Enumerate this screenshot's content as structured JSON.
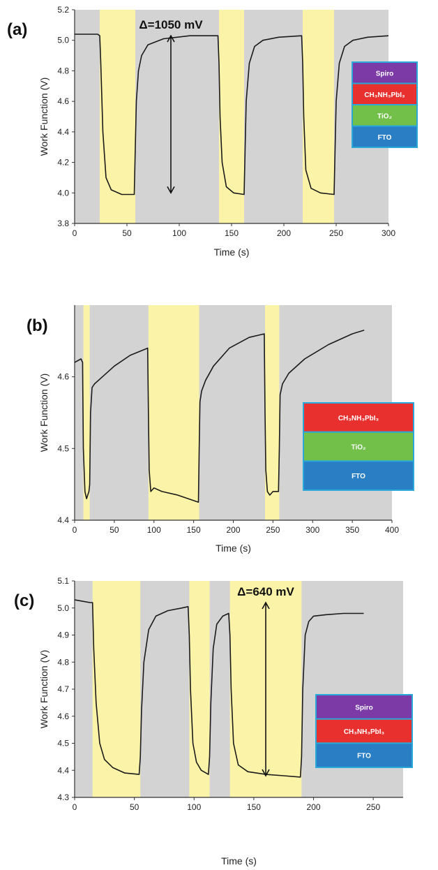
{
  "colors": {
    "dark_bg": "#d3d3d3",
    "light_bg": "#fbf4a8",
    "trace": "#1a1a1a",
    "spiro": "#7b3aa6",
    "perovskite": "#e8312e",
    "tio2": "#72c04a",
    "fto": "#2a7fc4",
    "layer_border": "#2aa8d8"
  },
  "chart_data": [
    {
      "type": "line",
      "panel_label": "(a)",
      "xlabel": "Time (s)",
      "ylabel": "Work Function (V)",
      "xlim": [
        0,
        300
      ],
      "ylim": [
        3.8,
        5.2
      ],
      "xticks": [
        "0",
        "50",
        "100",
        "150",
        "200",
        "250",
        "300"
      ],
      "yticks": [
        "3.8",
        "4.0",
        "4.2",
        "4.4",
        "4.6",
        "4.8",
        "5.0",
        "5.2"
      ],
      "illuminated_intervals": [
        [
          24,
          58
        ],
        [
          138,
          162
        ],
        [
          218,
          248
        ]
      ],
      "annotation": {
        "text": "Δ=1050 mV",
        "x": 92,
        "y_from": 4.0,
        "y_to": 5.03
      },
      "layer_stack": [
        "Spiro",
        "CH₃NH₃PbI₃",
        "TiO₂",
        "FTO"
      ],
      "series": [
        {
          "x": [
            0,
            22,
            24,
            25,
            27,
            30,
            35,
            45,
            57,
            58,
            59,
            61,
            64,
            70,
            85,
            110,
            137,
            138,
            139,
            141,
            145,
            152,
            162,
            163,
            164,
            167,
            172,
            180,
            195,
            217,
            218,
            219,
            221,
            226,
            235,
            248,
            249,
            250,
            253,
            258,
            266,
            280,
            300
          ],
          "y": [
            5.04,
            5.04,
            5.03,
            4.85,
            4.4,
            4.1,
            4.02,
            3.99,
            3.99,
            4.3,
            4.6,
            4.8,
            4.9,
            4.97,
            5.01,
            5.03,
            5.03,
            4.85,
            4.5,
            4.2,
            4.04,
            4.0,
            3.99,
            4.3,
            4.6,
            4.85,
            4.96,
            5.0,
            5.02,
            5.03,
            4.85,
            4.5,
            4.15,
            4.03,
            4.0,
            3.99,
            4.3,
            4.6,
            4.85,
            4.96,
            5.0,
            5.02,
            5.03
          ]
        }
      ]
    },
    {
      "type": "line",
      "panel_label": "(b)",
      "xlabel": "Time (s)",
      "ylabel": "Work Function (V)",
      "xlim": [
        0,
        400
      ],
      "ylim": [
        4.4,
        4.7
      ],
      "xticks": [
        "0",
        "50",
        "100",
        "150",
        "200",
        "250",
        "300",
        "350",
        "400"
      ],
      "yticks": [
        "4.4",
        "4.5",
        "4.6"
      ],
      "illuminated_intervals": [
        [
          11,
          19
        ],
        [
          93,
          157
        ],
        [
          240,
          258
        ]
      ],
      "layer_stack": [
        "CH₃NH₃PbI₃",
        "TiO₂",
        "FTO"
      ],
      "series": [
        {
          "x": [
            0,
            8,
            10,
            11,
            13,
            15,
            18,
            19,
            20,
            22,
            25,
            35,
            50,
            70,
            92,
            93,
            94,
            96,
            100,
            110,
            130,
            156,
            157,
            158,
            160,
            165,
            175,
            195,
            220,
            239,
            240,
            241,
            243,
            246,
            250,
            257,
            258,
            259,
            262,
            270,
            290,
            320,
            350,
            365
          ],
          "y": [
            4.62,
            4.625,
            4.62,
            4.5,
            4.44,
            4.43,
            4.44,
            4.45,
            4.55,
            4.585,
            4.59,
            4.6,
            4.615,
            4.63,
            4.64,
            4.55,
            4.47,
            4.44,
            4.445,
            4.44,
            4.435,
            4.425,
            4.5,
            4.565,
            4.58,
            4.595,
            4.615,
            4.64,
            4.655,
            4.66,
            4.55,
            4.47,
            4.44,
            4.435,
            4.44,
            4.44,
            4.5,
            4.575,
            4.59,
            4.605,
            4.625,
            4.645,
            4.66,
            4.665
          ]
        }
      ]
    },
    {
      "type": "line",
      "panel_label": "(c)",
      "xlabel": "Time (s)",
      "ylabel": "Work Function (V)",
      "xlim": [
        0,
        275
      ],
      "ylim": [
        4.3,
        5.1
      ],
      "xticks": [
        "0",
        "50",
        "100",
        "150",
        "200",
        "250"
      ],
      "yticks": [
        "4.3",
        "4.4",
        "4.5",
        "4.6",
        "4.7",
        "4.8",
        "4.9",
        "5.0",
        "5.1"
      ],
      "illuminated_intervals": [
        [
          15,
          55
        ],
        [
          96,
          113
        ],
        [
          130,
          190
        ]
      ],
      "annotation": {
        "text": "Δ=640 mV",
        "x": 160,
        "y_from": 4.38,
        "y_to": 5.02
      },
      "layer_stack": [
        "Spiro",
        "CH₃NH₃PbI₃",
        "FTO"
      ],
      "series": [
        {
          "x": [
            0,
            13,
            15,
            16,
            18,
            21,
            25,
            32,
            42,
            54,
            55,
            56,
            58,
            62,
            68,
            78,
            90,
            95,
            96,
            97,
            99,
            102,
            106,
            112,
            113,
            114,
            116,
            119,
            124,
            129,
            130,
            131,
            133,
            137,
            145,
            160,
            175,
            189,
            190,
            191,
            193,
            196,
            200,
            210,
            225,
            242
          ],
          "y": [
            5.03,
            5.02,
            5.02,
            4.85,
            4.65,
            4.5,
            4.44,
            4.41,
            4.39,
            4.385,
            4.45,
            4.62,
            4.8,
            4.92,
            4.97,
            4.99,
            5.0,
            5.005,
            4.9,
            4.7,
            4.5,
            4.43,
            4.4,
            4.385,
            4.45,
            4.65,
            4.85,
            4.94,
            4.97,
            4.98,
            4.9,
            4.7,
            4.5,
            4.42,
            4.395,
            4.385,
            4.38,
            4.375,
            4.45,
            4.7,
            4.9,
            4.95,
            4.97,
            4.975,
            4.98,
            4.98
          ]
        }
      ]
    }
  ]
}
